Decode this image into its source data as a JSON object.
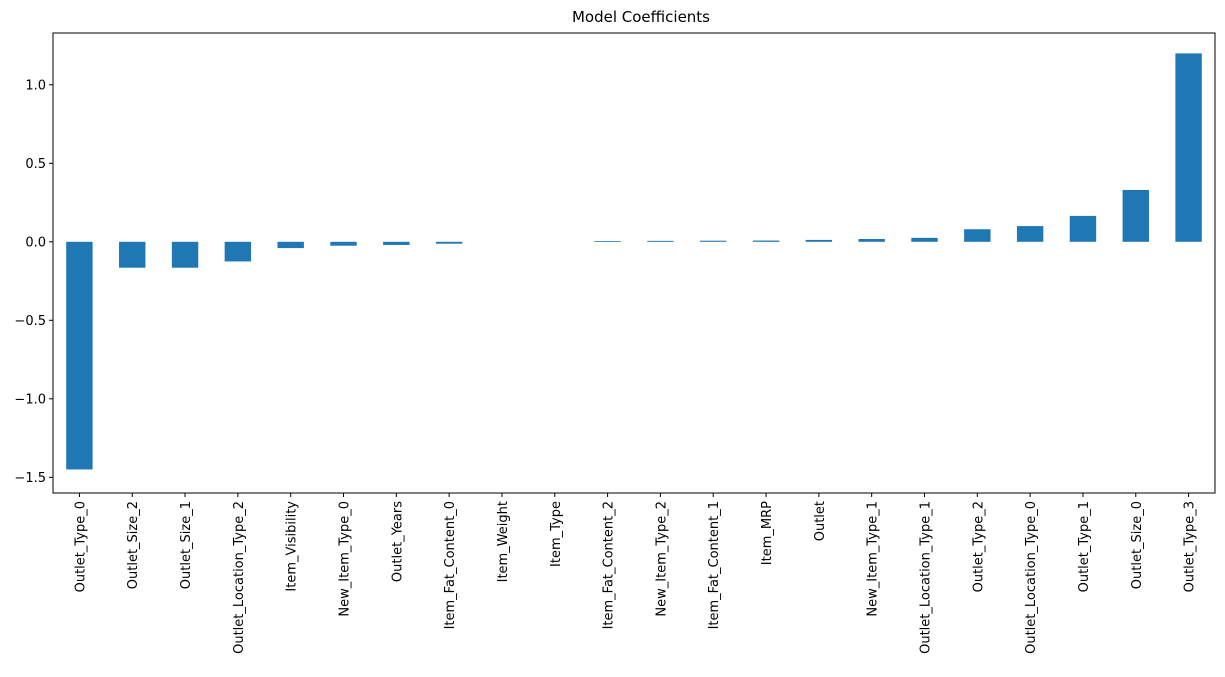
{
  "chart_data": {
    "type": "bar",
    "title": "Model Coefficients",
    "xlabel": "",
    "ylabel": "",
    "categories": [
      "Outlet_Type_0",
      "Outlet_Size_2",
      "Outlet_Size_1",
      "Outlet_Location_Type_2",
      "Item_Visibility",
      "New_Item_Type_0",
      "Outlet_Years",
      "Item_Fat_Content_0",
      "Item_Weight",
      "Item_Type",
      "Item_Fat_Content_2",
      "New_Item_Type_2",
      "Item_Fat_Content_1",
      "Item_MRP",
      "Outlet",
      "New_Item_Type_1",
      "Outlet_Location_Type_1",
      "Outlet_Type_2",
      "Outlet_Location_Type_0",
      "Outlet_Type_1",
      "Outlet_Size_0",
      "Outlet_Type_3"
    ],
    "values": [
      -1.45,
      -0.165,
      -0.165,
      -0.125,
      -0.04,
      -0.025,
      -0.02,
      -0.012,
      0.0,
      0.0,
      0.005,
      0.006,
      0.007,
      0.008,
      0.012,
      0.018,
      0.025,
      0.08,
      0.1,
      0.165,
      0.33,
      1.2
    ],
    "ylim": [
      -1.6,
      1.33
    ],
    "yticks": [
      -1.5,
      -1.0,
      -0.5,
      0.0,
      0.5,
      1.0
    ],
    "ytick_labels": [
      "−1.5",
      "−1.0",
      "−0.5",
      "0.0",
      "0.5",
      "1.0"
    ],
    "grid": false,
    "bar_color": "#1f77b4"
  }
}
